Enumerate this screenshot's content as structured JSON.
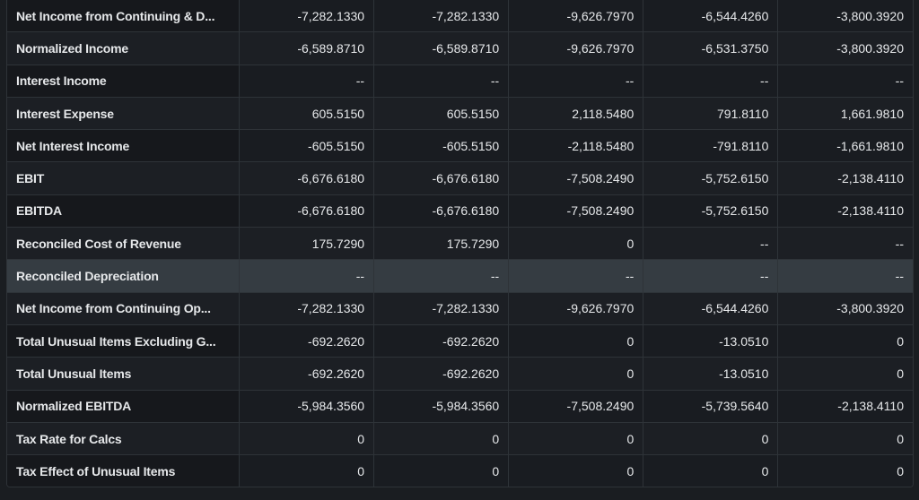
{
  "rows": [
    {
      "label": "Net Income from Continuing & D...",
      "values": [
        "-7,282.1330",
        "-7,282.1330",
        "-9,626.7970",
        "-6,544.4260",
        "-3,800.3920"
      ]
    },
    {
      "label": "Normalized Income",
      "values": [
        "-6,589.8710",
        "-6,589.8710",
        "-9,626.7970",
        "-6,531.3750",
        "-3,800.3920"
      ]
    },
    {
      "label": "Interest Income",
      "values": [
        "--",
        "--",
        "--",
        "--",
        "--"
      ]
    },
    {
      "label": "Interest Expense",
      "values": [
        "605.5150",
        "605.5150",
        "2,118.5480",
        "791.8110",
        "1,661.9810"
      ]
    },
    {
      "label": "Net Interest Income",
      "values": [
        "-605.5150",
        "-605.5150",
        "-2,118.5480",
        "-791.8110",
        "-1,661.9810"
      ]
    },
    {
      "label": "EBIT",
      "values": [
        "-6,676.6180",
        "-6,676.6180",
        "-7,508.2490",
        "-5,752.6150",
        "-2,138.4110"
      ]
    },
    {
      "label": "EBITDA",
      "values": [
        "-6,676.6180",
        "-6,676.6180",
        "-7,508.2490",
        "-5,752.6150",
        "-2,138.4110"
      ]
    },
    {
      "label": "Reconciled Cost of Revenue",
      "values": [
        "175.7290",
        "175.7290",
        "0",
        "--",
        "--"
      ]
    },
    {
      "label": "Reconciled Depreciation",
      "values": [
        "--",
        "--",
        "--",
        "--",
        "--"
      ],
      "hovered": true
    },
    {
      "label": "Net Income from Continuing Op...",
      "values": [
        "-7,282.1330",
        "-7,282.1330",
        "-9,626.7970",
        "-6,544.4260",
        "-3,800.3920"
      ]
    },
    {
      "label": "Total Unusual Items Excluding G...",
      "values": [
        "-692.2620",
        "-692.2620",
        "0",
        "-13.0510",
        "0"
      ]
    },
    {
      "label": "Total Unusual Items",
      "values": [
        "-692.2620",
        "-692.2620",
        "0",
        "-13.0510",
        "0"
      ]
    },
    {
      "label": "Normalized EBITDA",
      "values": [
        "-5,984.3560",
        "-5,984.3560",
        "-7,508.2490",
        "-5,739.5640",
        "-2,138.4110"
      ]
    },
    {
      "label": "Tax Rate for Calcs",
      "values": [
        "0",
        "0",
        "0",
        "0",
        "0"
      ]
    },
    {
      "label": "Tax Effect of Unusual Items",
      "values": [
        "0",
        "0",
        "0",
        "0",
        "0"
      ]
    }
  ]
}
